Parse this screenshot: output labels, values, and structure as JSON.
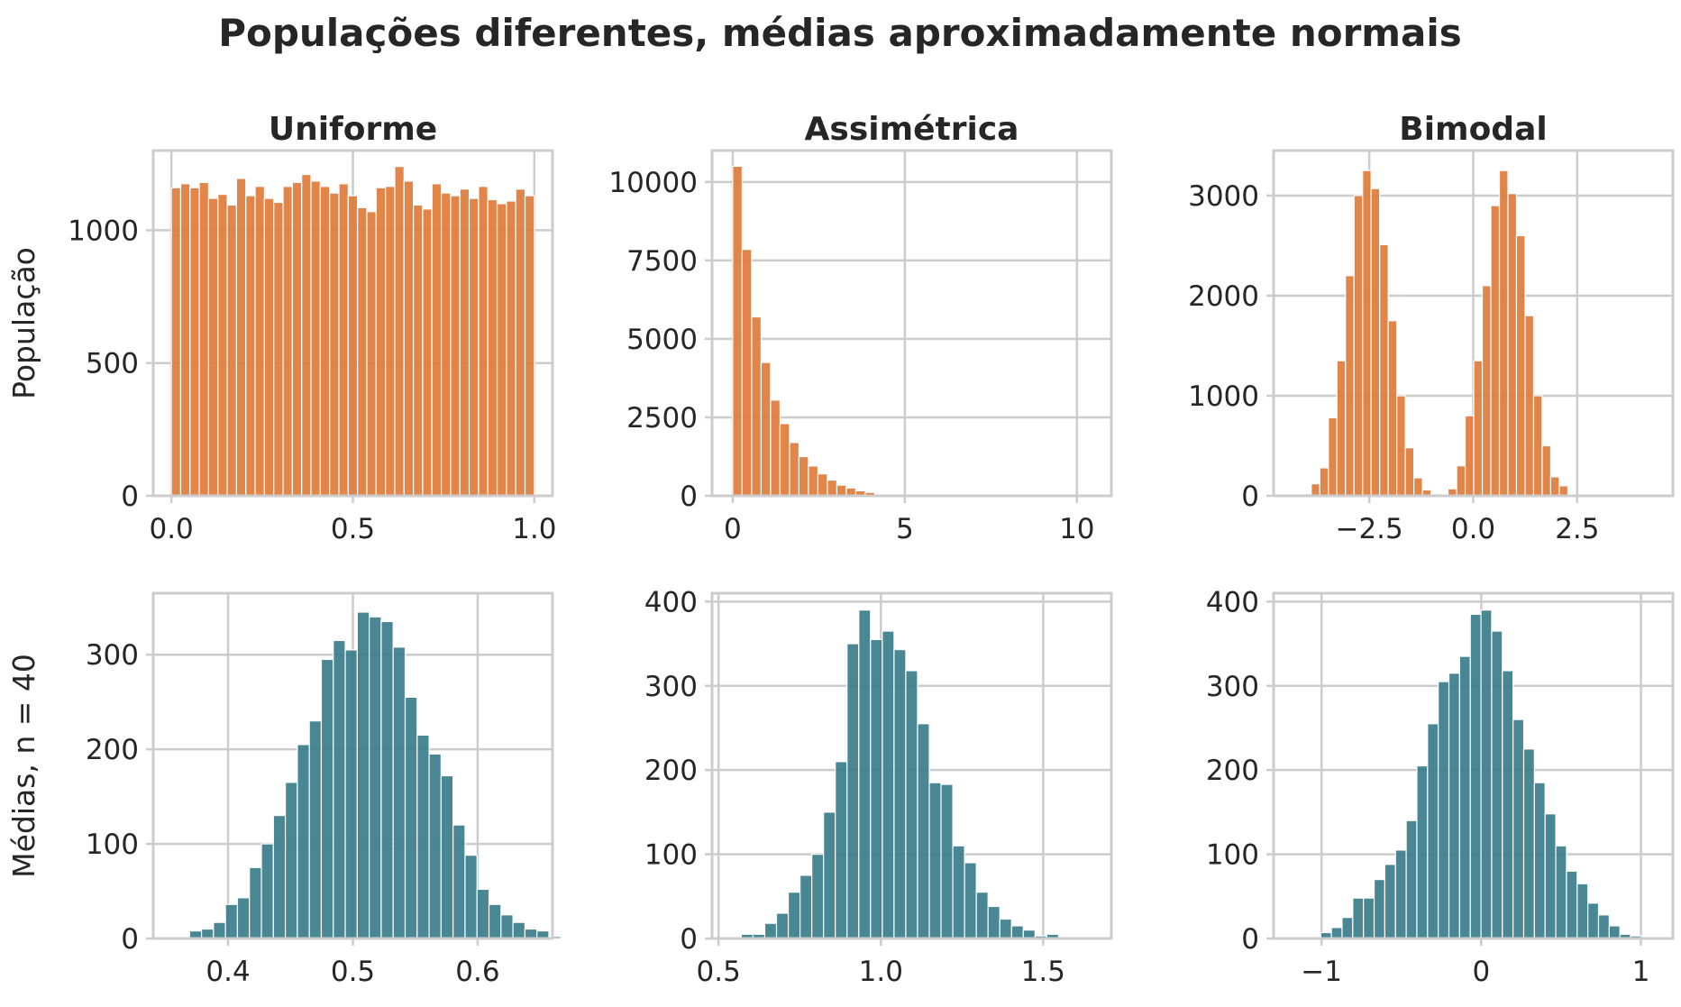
{
  "suptitle": "Populações diferentes, médias aproximadamente normais",
  "row_labels": [
    "População",
    "Médias, n = 40"
  ],
  "colors": {
    "population": "#e07b39",
    "means": "#3a7d8c",
    "grid": "#cccccc",
    "text": "#262626"
  },
  "chart_data": [
    {
      "type": "bar",
      "row": 0,
      "col": 0,
      "title": "Uniforme",
      "ylabel": "População",
      "xlim": [
        -0.05,
        1.05
      ],
      "ylim": [
        0,
        1300
      ],
      "xticks": [
        0.0,
        0.5,
        1.0
      ],
      "xtick_labels": [
        "0.0",
        "0.5",
        "1.0"
      ],
      "yticks": [
        0,
        500,
        1000
      ],
      "ytick_labels": [
        "0",
        "500",
        "1000"
      ],
      "bin_start": 0.0,
      "bin_width": 0.02564,
      "counts": [
        1160,
        1175,
        1160,
        1180,
        1120,
        1135,
        1095,
        1195,
        1130,
        1165,
        1120,
        1105,
        1165,
        1180,
        1210,
        1185,
        1165,
        1140,
        1175,
        1130,
        1085,
        1070,
        1160,
        1165,
        1240,
        1185,
        1095,
        1080,
        1175,
        1140,
        1130,
        1155,
        1120,
        1165,
        1115,
        1100,
        1110,
        1155,
        1130
      ]
    },
    {
      "type": "bar",
      "row": 0,
      "col": 1,
      "title": "Assimétrica",
      "ylabel": "",
      "xlim": [
        -0.6,
        11.0
      ],
      "ylim": [
        0,
        11000
      ],
      "xticks": [
        0,
        5,
        10
      ],
      "xtick_labels": [
        "0",
        "5",
        "10"
      ],
      "yticks": [
        0,
        2500,
        5000,
        7500,
        10000
      ],
      "ytick_labels": [
        "0",
        "2500",
        "5000",
        "7500",
        "10000"
      ],
      "bin_start": 0.0,
      "bin_width": 0.275,
      "counts": [
        10500,
        7850,
        5700,
        4250,
        3050,
        2300,
        1700,
        1250,
        950,
        700,
        500,
        340,
        250,
        160,
        110,
        60,
        45,
        30,
        20,
        15,
        12,
        8,
        6,
        5,
        4,
        3,
        2,
        2,
        1,
        1,
        1,
        1,
        1,
        1,
        0,
        1,
        0,
        0,
        1
      ]
    },
    {
      "type": "bar",
      "row": 0,
      "col": 2,
      "title": "Bimodal",
      "ylabel": "",
      "xlim": [
        -4.8,
        4.8
      ],
      "ylim": [
        0,
        3450
      ],
      "xticks": [
        -2.5,
        0.0,
        2.5
      ],
      "xtick_labels": [
        "−2.5",
        "0.0",
        "2.5"
      ],
      "yticks": [
        0,
        1000,
        2000,
        3000
      ],
      "ytick_labels": [
        "0",
        "1000",
        "2000",
        "3000"
      ],
      "bin_start": -4.1,
      "bin_width": 0.2056,
      "counts": [
        20,
        120,
        280,
        780,
        1350,
        2200,
        3000,
        3250,
        3070,
        2510,
        1750,
        1000,
        480,
        180,
        60,
        20,
        10,
        70,
        300,
        800,
        1350,
        2100,
        2900,
        3250,
        3020,
        2600,
        1800,
        1000,
        500,
        190,
        100
      ]
    },
    {
      "type": "bar",
      "row": 1,
      "col": 0,
      "title": "",
      "ylabel": "Médias, n = 40",
      "xlim": [
        0.34,
        0.66
      ],
      "ylim": [
        0,
        365
      ],
      "xticks": [
        0.4,
        0.5,
        0.6
      ],
      "xtick_labels": [
        "0.4",
        "0.5",
        "0.6"
      ],
      "yticks": [
        0,
        100,
        200,
        300
      ],
      "ytick_labels": [
        "0",
        "100",
        "200",
        "300"
      ],
      "bin_start": 0.3595,
      "bin_width": 0.0096,
      "counts": [
        2,
        8,
        10,
        17,
        36,
        43,
        75,
        100,
        130,
        165,
        205,
        230,
        295,
        315,
        305,
        345,
        340,
        335,
        308,
        255,
        215,
        195,
        172,
        120,
        88,
        52,
        36,
        25,
        17,
        10,
        8,
        2
      ]
    },
    {
      "type": "bar",
      "row": 1,
      "col": 1,
      "title": "",
      "ylabel": "",
      "xlim": [
        0.48,
        1.71
      ],
      "ylim": [
        0,
        410
      ],
      "xticks": [
        0.5,
        1.0,
        1.5
      ],
      "xtick_labels": [
        "0.5",
        "1.0",
        "1.5"
      ],
      "yticks": [
        0,
        100,
        200,
        300,
        400
      ],
      "ytick_labels": [
        "0",
        "100",
        "200",
        "300",
        "400"
      ],
      "bin_start": 0.57,
      "bin_width": 0.0362,
      "counts": [
        5,
        5,
        18,
        30,
        55,
        75,
        100,
        150,
        210,
        350,
        390,
        355,
        365,
        343,
        318,
        255,
        185,
        183,
        110,
        90,
        55,
        38,
        23,
        15,
        10,
        3,
        5
      ]
    },
    {
      "type": "bar",
      "row": 1,
      "col": 2,
      "title": "",
      "ylabel": "",
      "xlim": [
        -1.3,
        1.2
      ],
      "ylim": [
        0,
        410
      ],
      "xticks": [
        -1,
        0,
        1
      ],
      "xtick_labels": [
        "−1",
        "0",
        "1"
      ],
      "yticks": [
        0,
        100,
        200,
        300,
        400
      ],
      "ytick_labels": [
        "0",
        "100",
        "200",
        "300",
        "400"
      ],
      "bin_start": -1.005,
      "bin_width": 0.0669,
      "counts": [
        7,
        13,
        25,
        48,
        48,
        70,
        88,
        105,
        140,
        205,
        255,
        305,
        315,
        335,
        385,
        390,
        365,
        318,
        260,
        225,
        185,
        148,
        110,
        80,
        65,
        42,
        28,
        15,
        5,
        3
      ]
    }
  ]
}
